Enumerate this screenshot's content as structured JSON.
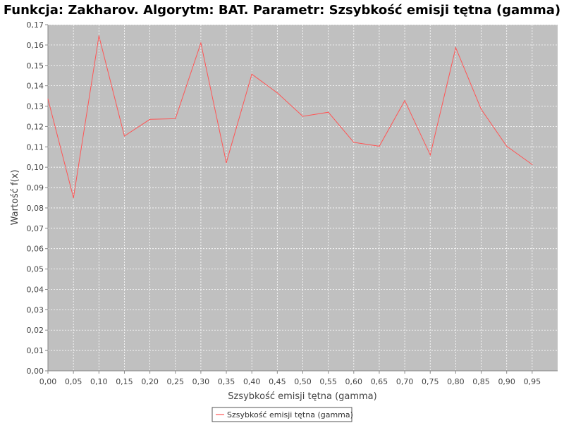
{
  "chart_data": {
    "type": "line",
    "title": "Funkcja: Zakharov. Algorytm: BAT. Parametr: Szsybkość emisji tętna (gamma)",
    "xlabel": "Szsybkość emisji tętna (gamma)",
    "ylabel": "Wartość f(x)",
    "xlim": [
      0.0,
      1.0
    ],
    "ylim": [
      0.0,
      0.17
    ],
    "x_ticks": [
      "0,00",
      "0,05",
      "0,10",
      "0,15",
      "0,20",
      "0,25",
      "0,30",
      "0,35",
      "0,40",
      "0,45",
      "0,50",
      "0,55",
      "0,60",
      "0,65",
      "0,70",
      "0,75",
      "0,80",
      "0,85",
      "0,90",
      "0,95"
    ],
    "y_ticks": [
      "0,00",
      "0,01",
      "0,02",
      "0,03",
      "0,04",
      "0,05",
      "0,06",
      "0,07",
      "0,08",
      "0,09",
      "0,10",
      "0,11",
      "0,12",
      "0,13",
      "0,14",
      "0,15",
      "0,16",
      "0,17"
    ],
    "grid": true,
    "legend_position": "bottom-center",
    "series": [
      {
        "name": "Szsybkość emisji tętna (gamma)",
        "color": "#ff5555",
        "x": [
          0.0,
          0.05,
          0.1,
          0.15,
          0.2,
          0.25,
          0.3,
          0.35,
          0.4,
          0.45,
          0.5,
          0.55,
          0.6,
          0.65,
          0.7,
          0.75,
          0.8,
          0.85,
          0.9,
          0.95
        ],
        "values": [
          0.1335,
          0.085,
          0.1645,
          0.1153,
          0.1235,
          0.1238,
          0.161,
          0.1022,
          0.1457,
          0.1365,
          0.125,
          0.127,
          0.1122,
          0.1103,
          0.1327,
          0.106,
          0.1587,
          0.1285,
          0.1103,
          0.1013
        ]
      }
    ]
  },
  "colors": {
    "plot_background": "#c0c0c0",
    "grid": "#ffffff",
    "series": "#ff5555"
  }
}
